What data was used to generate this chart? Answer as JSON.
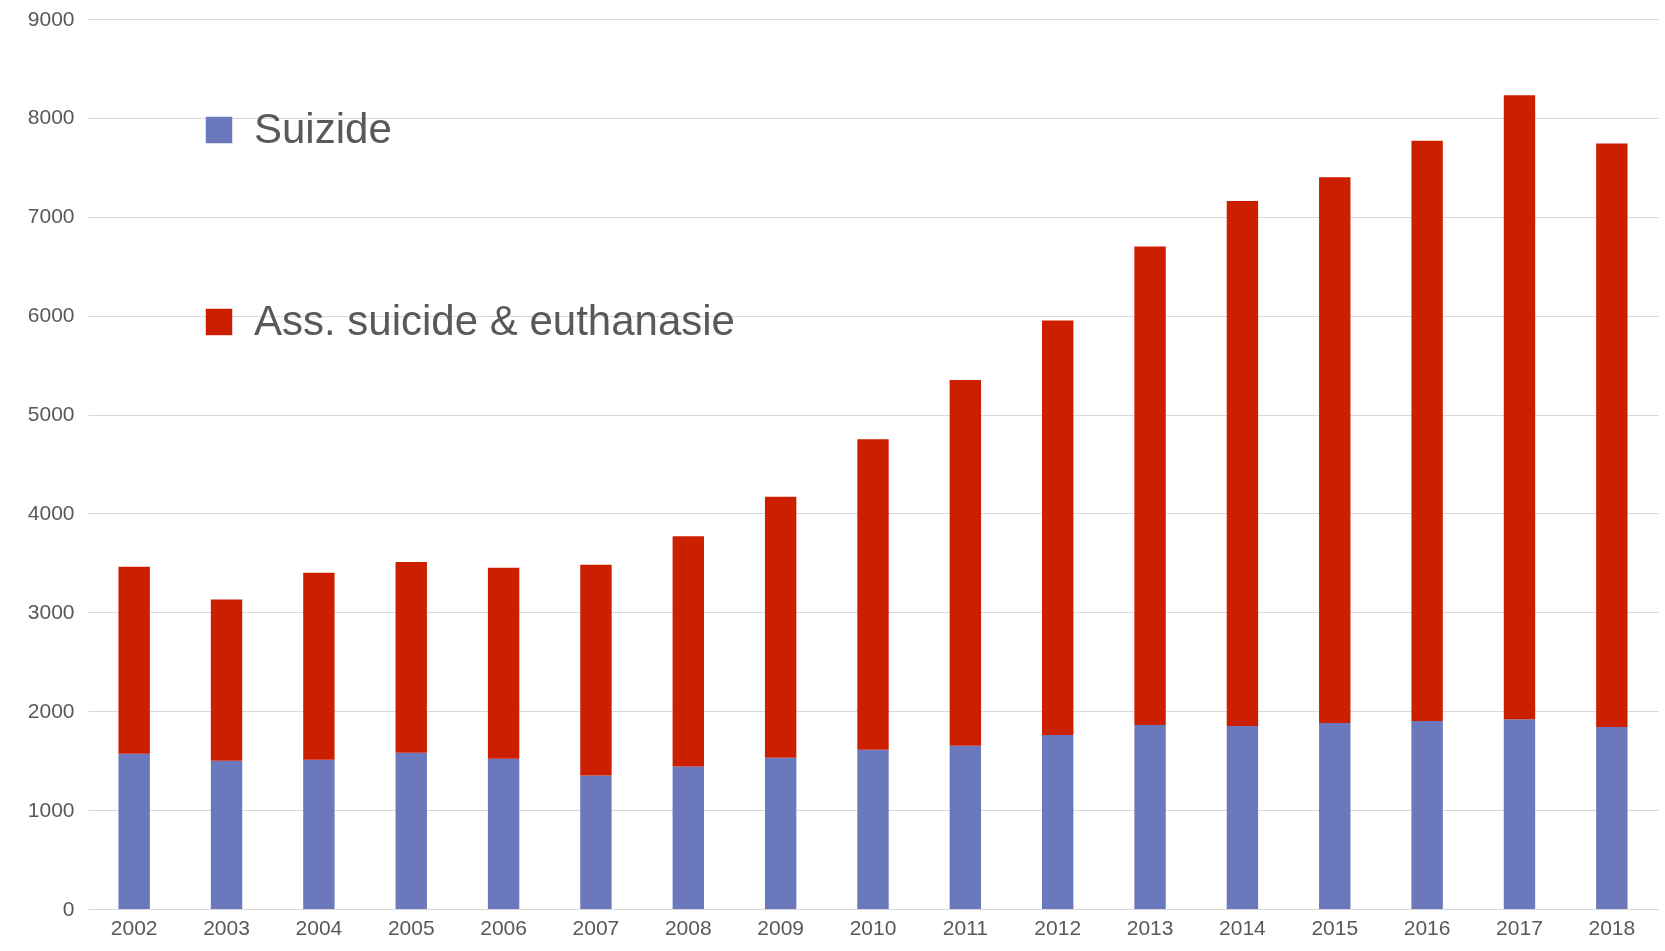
{
  "chart_data": {
    "type": "bar",
    "stacked": true,
    "categories": [
      "2002",
      "2003",
      "2004",
      "2005",
      "2006",
      "2007",
      "2008",
      "2009",
      "2010",
      "2011",
      "2012",
      "2013",
      "2014",
      "2015",
      "2016",
      "2017",
      "2018"
    ],
    "series": [
      {
        "name": "Suizide",
        "color": "#6b78bc",
        "values": [
          1570,
          1500,
          1510,
          1580,
          1520,
          1350,
          1440,
          1530,
          1610,
          1650,
          1760,
          1860,
          1850,
          1880,
          1900,
          1920,
          1840
        ]
      },
      {
        "name": "Ass. suicide & euthanasie",
        "color": "#cc1f00",
        "values": [
          1890,
          1630,
          1890,
          1930,
          1930,
          2130,
          2330,
          2640,
          3140,
          3700,
          4190,
          4840,
          5310,
          5520,
          5870,
          6310,
          5900
        ]
      }
    ],
    "ylim": [
      0,
      9000
    ],
    "yticks": [
      0,
      1000,
      2000,
      3000,
      4000,
      5000,
      6000,
      7000,
      8000,
      9000
    ],
    "grid": "y",
    "legend": "top left"
  }
}
